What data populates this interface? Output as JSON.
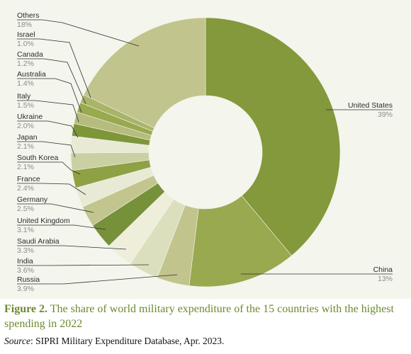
{
  "figure": {
    "number_label": "Figure 2.",
    "caption": "The share of world military expenditure of the 15 countries with the highest spending in 2022",
    "source_label": "Source",
    "source_text": ": SIPRI Military Expenditure Database, Apr. 2023."
  },
  "chart_data": {
    "type": "pie",
    "donut": true,
    "legend": "none",
    "slices": [
      {
        "label": "United States",
        "pct_text": "39%",
        "value": 39.0,
        "color": "#84983c"
      },
      {
        "label": "China",
        "pct_text": "13%",
        "value": 13.0,
        "color": "#98a94f"
      },
      {
        "label": "Russia",
        "pct_text": "3.9%",
        "value": 3.9,
        "color": "#c1c48c"
      },
      {
        "label": "India",
        "pct_text": "3.6%",
        "value": 3.6,
        "color": "#dcdfbe"
      },
      {
        "label": "Saudi Arabia",
        "pct_text": "3.3%",
        "value": 3.3,
        "color": "#eeeedb"
      },
      {
        "label": "United Kingdom",
        "pct_text": "3.1%",
        "value": 3.1,
        "color": "#76913a"
      },
      {
        "label": "Germany",
        "pct_text": "2.5%",
        "value": 2.5,
        "color": "#c3c58f"
      },
      {
        "label": "France",
        "pct_text": "2.4%",
        "value": 2.4,
        "color": "#e9ead6"
      },
      {
        "label": "South Korea",
        "pct_text": "2.1%",
        "value": 2.1,
        "color": "#8ea144"
      },
      {
        "label": "Japan",
        "pct_text": "2.1%",
        "value": 2.1,
        "color": "#cbd0a3"
      },
      {
        "label": "Ukraine",
        "pct_text": "2.0%",
        "value": 2.0,
        "color": "#e9ead6"
      },
      {
        "label": "Italy",
        "pct_text": "1.5%",
        "value": 1.5,
        "color": "#7e963a"
      },
      {
        "label": "Australia",
        "pct_text": "1.4%",
        "value": 1.4,
        "color": "#b6bc7d"
      },
      {
        "label": "Canada",
        "pct_text": "1.2%",
        "value": 1.2,
        "color": "#98a94f"
      },
      {
        "label": "Israel",
        "pct_text": "1.0%",
        "value": 1.0,
        "color": "#a9b468"
      },
      {
        "label": "Others",
        "pct_text": "18%",
        "value": 18.0,
        "color": "#c2c48d"
      }
    ]
  }
}
